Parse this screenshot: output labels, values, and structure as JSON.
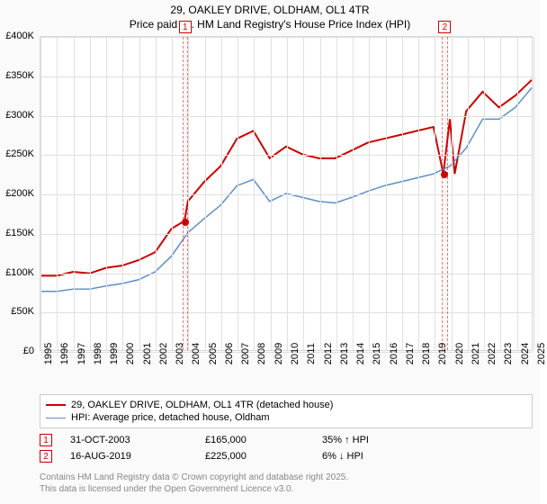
{
  "title": {
    "line1": "29, OAKLEY DRIVE, OLDHAM, OL1 4TR",
    "line2": "Price paid vs. HM Land Registry's House Price Index (HPI)"
  },
  "chart": {
    "type": "line",
    "background_color": "#ffffff",
    "grid_color": "#e0e0e0",
    "border_color": "#d9d9d9",
    "x": {
      "years": [
        1995,
        1996,
        1997,
        1998,
        1999,
        2000,
        2001,
        2002,
        2003,
        2004,
        2005,
        2006,
        2007,
        2008,
        2009,
        2010,
        2011,
        2012,
        2013,
        2014,
        2015,
        2016,
        2017,
        2018,
        2019,
        2020,
        2021,
        2022,
        2023,
        2024,
        2025
      ],
      "min": 1995,
      "max": 2025,
      "label_fontsize": 11,
      "label_rotation": -90
    },
    "y": {
      "ticks": [
        0,
        50000,
        100000,
        150000,
        200000,
        250000,
        300000,
        350000,
        400000
      ],
      "tick_labels": [
        "£0",
        "£50K",
        "£100K",
        "£150K",
        "£200K",
        "£250K",
        "£300K",
        "£350K",
        "£400K"
      ],
      "min": 0,
      "max": 400000,
      "label_fontsize": 11
    },
    "series": [
      {
        "name": "29, OAKLEY DRIVE, OLDHAM, OL1 4TR (detached house)",
        "color": "#cc0000",
        "line_width": 2,
        "x": [
          1995,
          1996,
          1997,
          1998,
          1999,
          2000,
          2001,
          2002,
          2003,
          2003.8,
          2004,
          2005,
          2006,
          2007,
          2008,
          2009,
          2010,
          2011,
          2012,
          2013,
          2014,
          2015,
          2016,
          2017,
          2018,
          2019,
          2019.6,
          2020,
          2020.3,
          2021,
          2022,
          2023,
          2024,
          2025
        ],
        "y": [
          95000,
          95000,
          100000,
          98000,
          105000,
          108000,
          115000,
          125000,
          155000,
          165000,
          190000,
          215000,
          235000,
          270000,
          280000,
          245000,
          260000,
          250000,
          245000,
          245000,
          255000,
          265000,
          270000,
          275000,
          280000,
          285000,
          225000,
          295000,
          225000,
          305000,
          330000,
          310000,
          325000,
          345000
        ]
      },
      {
        "name": "HPI: Average price, detached house, Oldham",
        "color": "#5b8fc7",
        "line_width": 1.5,
        "x": [
          1995,
          1996,
          1997,
          1998,
          1999,
          2000,
          2001,
          2002,
          2003,
          2004,
          2005,
          2006,
          2007,
          2008,
          2009,
          2010,
          2011,
          2012,
          2013,
          2014,
          2015,
          2016,
          2017,
          2018,
          2019,
          2020,
          2021,
          2022,
          2023,
          2024,
          2025
        ],
        "y": [
          75000,
          75000,
          78000,
          78000,
          82000,
          85000,
          90000,
          100000,
          120000,
          150000,
          168000,
          185000,
          210000,
          218000,
          190000,
          200000,
          195000,
          190000,
          188000,
          195000,
          203000,
          210000,
          215000,
          220000,
          225000,
          235000,
          258000,
          295000,
          295000,
          310000,
          335000
        ]
      }
    ],
    "markers": [
      {
        "id": "1",
        "x": 2003.8,
        "y": 165000,
        "band_width_years": 0.35
      },
      {
        "id": "2",
        "x": 2019.6,
        "y": 225000,
        "band_width_years": 0.35
      }
    ],
    "marker_box_color": "#cc0000",
    "marker_band_fill": "rgba(255,0,0,0.03)"
  },
  "legend": {
    "items": [
      {
        "label": "29, OAKLEY DRIVE, OLDHAM, OL1 4TR (detached house)",
        "color": "#cc0000",
        "width": 2
      },
      {
        "label": "HPI: Average price, detached house, Oldham",
        "color": "#5b8fc7",
        "width": 1.5
      }
    ],
    "border_color": "#cccccc",
    "fontsize": 11
  },
  "transactions": [
    {
      "id": "1",
      "date": "31-OCT-2003",
      "price": "£165,000",
      "diff": "35% ↑ HPI"
    },
    {
      "id": "2",
      "date": "16-AUG-2019",
      "price": "£225,000",
      "diff": "6% ↓ HPI"
    }
  ],
  "attribution": {
    "line1": "Contains HM Land Registry data © Crown copyright and database right 2025.",
    "line2": "This data is licensed under the Open Government Licence v3.0."
  }
}
